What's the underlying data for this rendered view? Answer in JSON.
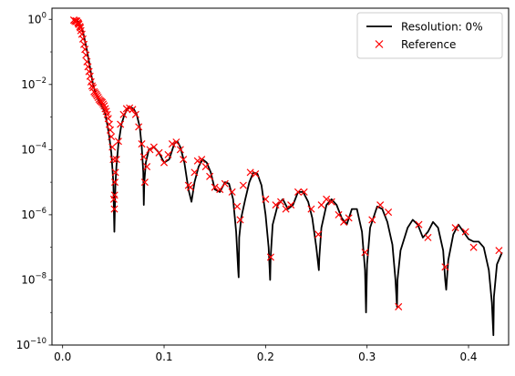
{
  "chart_data": {
    "type": "line",
    "yscale": "log",
    "xlim": [
      -0.0105,
      0.4395
    ],
    "ylim": [
      1e-10,
      2.2
    ],
    "grid": false,
    "legend_position": "top-right",
    "x_ticks": [
      {
        "value": 0.0,
        "label": "0.0"
      },
      {
        "value": 0.1,
        "label": "0.1"
      },
      {
        "value": 0.2,
        "label": "0.2"
      },
      {
        "value": 0.3,
        "label": "0.3"
      },
      {
        "value": 0.4,
        "label": "0.4"
      }
    ],
    "y_ticks": [
      {
        "exp": 0,
        "label": "10",
        "sup": "0"
      },
      {
        "exp": -2,
        "label": "10",
        "sup": "−2"
      },
      {
        "exp": -4,
        "label": "10",
        "sup": "−4"
      },
      {
        "exp": -6,
        "label": "10",
        "sup": "−6"
      },
      {
        "exp": -8,
        "label": "10",
        "sup": "−8"
      },
      {
        "exp": -10,
        "label": "10",
        "sup": "−10"
      }
    ],
    "series": [
      {
        "name": "Resolution: 0%",
        "kind": "line",
        "color": "#000000",
        "x": [
          0.01,
          0.012,
          0.014,
          0.016,
          0.018,
          0.02,
          0.022,
          0.024,
          0.026,
          0.028,
          0.03,
          0.032,
          0.034,
          0.036,
          0.038,
          0.04,
          0.042,
          0.044,
          0.046,
          0.048,
          0.05,
          0.0505,
          0.051,
          0.0515,
          0.052,
          0.053,
          0.055,
          0.058,
          0.061,
          0.064,
          0.067,
          0.07,
          0.073,
          0.076,
          0.078,
          0.0795,
          0.08,
          0.0805,
          0.082,
          0.085,
          0.09,
          0.095,
          0.1,
          0.105,
          0.11,
          0.113,
          0.116,
          0.12,
          0.124,
          0.127,
          0.13,
          0.134,
          0.138,
          0.142,
          0.146,
          0.15,
          0.155,
          0.16,
          0.164,
          0.168,
          0.171,
          0.173,
          0.1735,
          0.174,
          0.176,
          0.18,
          0.184,
          0.188,
          0.192,
          0.196,
          0.2,
          0.203,
          0.2045,
          0.205,
          0.207,
          0.212,
          0.217,
          0.222,
          0.227,
          0.232,
          0.237,
          0.242,
          0.246,
          0.25,
          0.2525,
          0.253,
          0.255,
          0.26,
          0.265,
          0.27,
          0.275,
          0.28,
          0.285,
          0.29,
          0.295,
          0.298,
          0.299,
          0.3,
          0.303,
          0.31,
          0.315,
          0.32,
          0.325,
          0.328,
          0.3295,
          0.33,
          0.333,
          0.34,
          0.345,
          0.35,
          0.355,
          0.36,
          0.365,
          0.37,
          0.375,
          0.377,
          0.378,
          0.38,
          0.385,
          0.39,
          0.395,
          0.4,
          0.405,
          0.41,
          0.415,
          0.42,
          0.423,
          0.4245,
          0.425,
          0.428,
          0.433
        ],
        "y": [
          1.0,
          0.98,
          0.92,
          0.8,
          0.62,
          0.42,
          0.22,
          0.11,
          0.05,
          0.022,
          0.01,
          0.006,
          0.004,
          0.003,
          0.0024,
          0.0018,
          0.0012,
          0.0006,
          0.00025,
          8e-05,
          1e-05,
          1.5e-06,
          3e-07,
          1.5e-06,
          8e-06,
          3e-05,
          0.00015,
          0.0006,
          0.0012,
          0.0018,
          0.002,
          0.0018,
          0.0012,
          0.0005,
          0.00012,
          2e-05,
          2e-06,
          1e-05,
          4e-05,
          0.0001,
          0.00012,
          8e-05,
          4e-05,
          5e-05,
          0.00015,
          0.00018,
          0.00012,
          4e-05,
          6e-06,
          2.5e-06,
          1e-05,
          3e-05,
          5e-05,
          4e-05,
          2e-05,
          6e-06,
          5e-06,
          1e-05,
          9e-06,
          3e-06,
          3e-07,
          2e-08,
          1.2e-08,
          2e-07,
          8e-07,
          3e-06,
          1e-05,
          2e-05,
          1.8e-05,
          8e-06,
          1e-06,
          1e-07,
          1e-08,
          5e-08,
          5e-07,
          2e-06,
          3e-06,
          1.5e-06,
          2e-06,
          5e-06,
          5e-06,
          2.5e-06,
          8e-07,
          1e-07,
          2e-08,
          5e-08,
          4e-07,
          2e-06,
          3e-06,
          2e-06,
          8e-07,
          5e-07,
          1.5e-06,
          1.5e-06,
          3e-07,
          2e-08,
          1e-09,
          3e-08,
          4e-07,
          1.8e-06,
          1.5e-06,
          6e-07,
          1.2e-07,
          1e-08,
          1.5e-09,
          1e-08,
          8e-08,
          4e-07,
          7e-07,
          5e-07,
          2e-07,
          3e-07,
          6e-07,
          4e-07,
          8e-08,
          1e-08,
          5e-09,
          4e-08,
          2.5e-07,
          5e-07,
          3e-07,
          1.8e-07,
          1.5e-07,
          1.5e-07,
          1e-07,
          2e-08,
          2e-09,
          2e-10,
          3e-09,
          3e-08,
          7e-08
        ]
      },
      {
        "name": "Reference",
        "kind": "markers",
        "marker": "x",
        "color": "#ff0000",
        "x": [
          0.011,
          0.012,
          0.013,
          0.0135,
          0.014,
          0.015,
          0.0155,
          0.016,
          0.017,
          0.0175,
          0.018,
          0.019,
          0.02,
          0.021,
          0.022,
          0.023,
          0.024,
          0.025,
          0.026,
          0.027,
          0.028,
          0.029,
          0.03,
          0.031,
          0.032,
          0.033,
          0.034,
          0.035,
          0.036,
          0.037,
          0.038,
          0.039,
          0.04,
          0.041,
          0.042,
          0.043,
          0.044,
          0.045,
          0.046,
          0.047,
          0.048,
          0.049,
          0.05,
          0.0505,
          0.051,
          0.0512,
          0.0515,
          0.052,
          0.053,
          0.055,
          0.057,
          0.06,
          0.063,
          0.066,
          0.069,
          0.072,
          0.075,
          0.078,
          0.08,
          0.081,
          0.083,
          0.086,
          0.09,
          0.095,
          0.1,
          0.104,
          0.108,
          0.112,
          0.116,
          0.119,
          0.124,
          0.126,
          0.13,
          0.133,
          0.137,
          0.141,
          0.145,
          0.15,
          0.155,
          0.16,
          0.167,
          0.172,
          0.175,
          0.178,
          0.185,
          0.19,
          0.2,
          0.205,
          0.21,
          0.215,
          0.22,
          0.225,
          0.232,
          0.238,
          0.245,
          0.252,
          0.255,
          0.26,
          0.265,
          0.272,
          0.277,
          0.282,
          0.298,
          0.305,
          0.313,
          0.321,
          0.331,
          0.351,
          0.36,
          0.377,
          0.387,
          0.397,
          0.405,
          0.43
        ],
        "y": [
          0.95,
          0.9,
          0.85,
          0.9,
          0.88,
          0.8,
          0.75,
          0.7,
          0.6,
          0.55,
          0.45,
          0.35,
          0.25,
          0.17,
          0.12,
          0.08,
          0.05,
          0.035,
          0.025,
          0.018,
          0.012,
          0.009,
          0.008,
          0.006,
          0.0055,
          0.005,
          0.0045,
          0.004,
          0.0035,
          0.0032,
          0.003,
          0.0028,
          0.0025,
          0.0022,
          0.0018,
          0.0015,
          0.0012,
          0.0009,
          0.0006,
          0.0004,
          0.00025,
          0.00012,
          5e-05,
          3e-06,
          1.5e-06,
          4e-06,
          1e-05,
          2e-05,
          5e-05,
          0.00018,
          0.0006,
          0.0012,
          0.0018,
          0.0019,
          0.0017,
          0.0012,
          0.0005,
          0.00015,
          6e-05,
          1e-05,
          3e-05,
          0.0001,
          0.00012,
          8e-05,
          4e-05,
          7e-05,
          0.00015,
          0.00017,
          0.0001,
          5e-05,
          8e-06,
          7e-06,
          2e-05,
          4.5e-05,
          5e-05,
          3e-05,
          1.5e-05,
          7e-06,
          6e-06,
          9e-06,
          5e-06,
          1.8e-06,
          7e-07,
          8e-06,
          2e-05,
          1.8e-05,
          3e-06,
          5e-08,
          2e-06,
          2.5e-06,
          1.5e-06,
          2e-06,
          5e-06,
          5e-06,
          1.5e-06,
          2.5e-07,
          2e-06,
          3e-06,
          2.5e-06,
          1e-06,
          6e-07,
          8e-07,
          7e-08,
          7e-07,
          2e-06,
          1.2e-06,
          1.5e-09,
          5e-07,
          2e-07,
          2.5e-08,
          4e-07,
          3e-07,
          1e-07,
          8e-08
        ]
      }
    ]
  }
}
